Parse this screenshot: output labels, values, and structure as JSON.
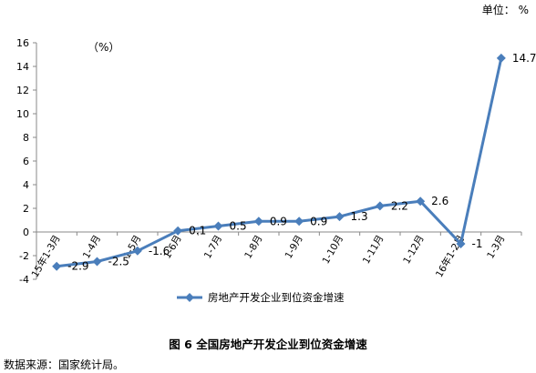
{
  "header": {
    "unit_label": "单位：  %"
  },
  "chart_data": {
    "type": "line",
    "title": "",
    "ylabel": "（%）",
    "xlabel": "",
    "categories": [
      "15年1-3月",
      "1-4月",
      "1-5月",
      "1-6月",
      "1-7月",
      "1-8月",
      "1-9月",
      "1-10月",
      "1-11月",
      "1-12月",
      "16年1-2月",
      "1-3月"
    ],
    "series": [
      {
        "name": "房地产开发企业到位资金增速",
        "values": [
          -2.9,
          -2.5,
          -1.6,
          0.1,
          0.5,
          0.9,
          0.9,
          1.3,
          2.2,
          2.6,
          -1,
          14.7
        ],
        "labels": [
          "-2.9",
          "-2.5",
          "-1.6",
          "0.1",
          "0.5",
          "0.9",
          "0.9",
          "1.3",
          "2.2",
          "2.6",
          "-1",
          "14.7"
        ],
        "color": "#4A7EBB"
      }
    ],
    "ylim": [
      -4,
      16
    ],
    "yticks": [
      "-4",
      "-2",
      "0",
      "2",
      "4",
      "6",
      "8",
      "10",
      "12",
      "14",
      "16"
    ],
    "grid": false,
    "legend_position": "bottom"
  },
  "footer": {
    "caption": "图 6   全国房地产开发企业到位资金增速",
    "source": "数据来源：国家统计局。"
  }
}
